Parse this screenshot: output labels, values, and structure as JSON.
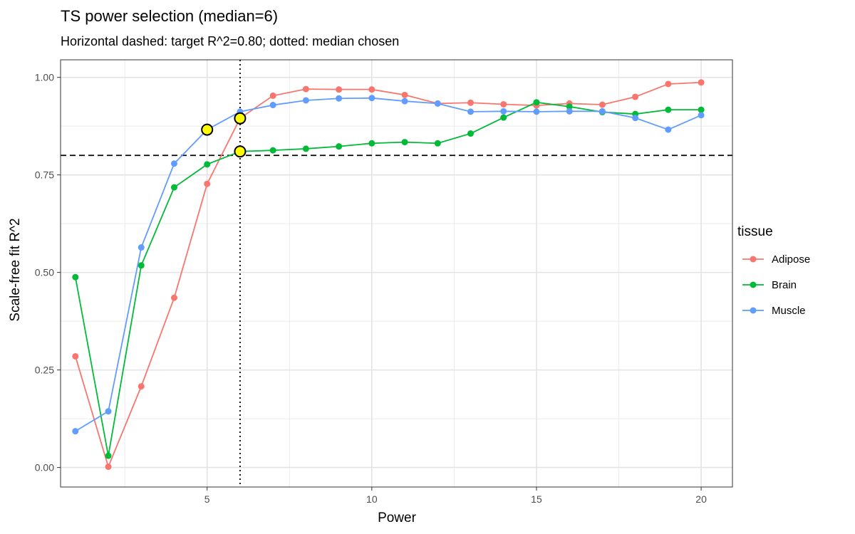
{
  "chart_data": {
    "type": "line",
    "title": "TS power selection (median=6)",
    "subtitle": "Horizontal dashed: target R^2=0.80; dotted: median chosen",
    "xlabel": "Power",
    "ylabel": "Scale-free fit R^2",
    "xlim": [
      0.55,
      20.95
    ],
    "ylim": [
      -0.05,
      1.045
    ],
    "x_ticks": [
      5,
      10,
      15,
      20
    ],
    "x_tick_labels": [
      "5",
      "10",
      "15",
      "20"
    ],
    "y_ticks": [
      0,
      0.25,
      0.5,
      0.75,
      1
    ],
    "y_tick_labels": [
      "0.00",
      "0.25",
      "0.50",
      "0.75",
      "1.00"
    ],
    "grid": true,
    "x": [
      1,
      2,
      3,
      4,
      5,
      6,
      7,
      8,
      9,
      10,
      11,
      12,
      13,
      14,
      15,
      16,
      17,
      18,
      19,
      20
    ],
    "legend": {
      "title": "tissue",
      "position": "right"
    },
    "series": [
      {
        "name": "Adipose",
        "color": "#F8766D",
        "values": [
          0.285,
          0.002,
          0.208,
          0.435,
          0.727,
          0.895,
          0.953,
          0.97,
          0.969,
          0.969,
          0.955,
          0.933,
          0.935,
          0.931,
          0.928,
          0.933,
          0.93,
          0.95,
          0.983,
          0.987
        ]
      },
      {
        "name": "Brain",
        "color": "#00BA38",
        "values": [
          0.488,
          0.03,
          0.518,
          0.718,
          0.777,
          0.81,
          0.813,
          0.817,
          0.823,
          0.831,
          0.834,
          0.831,
          0.856,
          0.897,
          0.936,
          0.925,
          0.911,
          0.906,
          0.917,
          0.917
        ]
      },
      {
        "name": "Muscle",
        "color": "#619CFF",
        "values": [
          0.093,
          0.144,
          0.564,
          0.779,
          0.866,
          0.912,
          0.929,
          0.941,
          0.946,
          0.947,
          0.939,
          0.933,
          0.912,
          0.913,
          0.912,
          0.913,
          0.913,
          0.896,
          0.866,
          0.903
        ]
      }
    ],
    "reference_lines": [
      {
        "orientation": "horizontal",
        "value": 0.8,
        "style": "dashed"
      },
      {
        "orientation": "vertical",
        "value": 6,
        "style": "dotted"
      }
    ],
    "highlighted_points": [
      {
        "x": 5,
        "y": 0.866,
        "series": "Muscle"
      },
      {
        "x": 6,
        "y": 0.895,
        "series": "Adipose"
      },
      {
        "x": 6,
        "y": 0.81,
        "series": "Brain"
      }
    ],
    "highlight_fill": "#FFFF00"
  }
}
